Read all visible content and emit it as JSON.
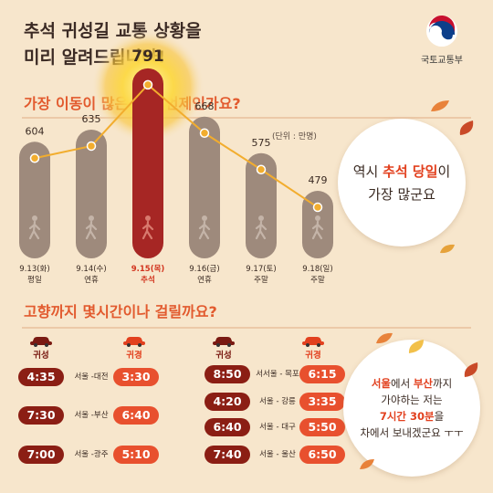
{
  "header": {
    "title_line1": "추석 귀성길 교통 상황을",
    "title_line2": "미리 알려드립니다!",
    "ministry": "국토교통부"
  },
  "section1": {
    "title": "가장 이동이 많은 날은 언제인가요?",
    "unit": "(단위 : 만명)"
  },
  "chart_data": {
    "type": "bar",
    "categories": [
      "9.13(화)",
      "9.14(수)",
      "9.15(목)",
      "9.16(금)",
      "9.17(토)",
      "9.18(일)"
    ],
    "sublabels": [
      "평일",
      "연휴",
      "추석",
      "연휴",
      "주말",
      "주말"
    ],
    "values": [
      604,
      635,
      791,
      668,
      575,
      479
    ],
    "highlight_index": 2,
    "colors": {
      "bar": "#9e8a7c",
      "highlight": "#a62624",
      "line": "#f2ad2e",
      "glow": "#fcd94a"
    }
  },
  "bubble1": {
    "prefix": "역시 ",
    "highlight": "추석 당일",
    "suffix": "이",
    "line2": "가장 많군요"
  },
  "section2": {
    "title": "고향까지 몇시간이나 걸릴까요?",
    "legend_home": "귀성",
    "legend_return": "귀경"
  },
  "routes_left": [
    {
      "home": "4:35",
      "route": "서울 -대전",
      "ret": "3:30"
    },
    {
      "home": "7:30",
      "route": "서울 -부산",
      "ret": "6:40"
    },
    {
      "home": "7:00",
      "route": "서울 -광주",
      "ret": "5:10"
    }
  ],
  "routes_right": [
    {
      "home": "8:50",
      "route": "서서울 - 목포",
      "ret": "6:15"
    },
    {
      "home": "4:20",
      "route": "서울 - 강릉",
      "ret": "3:35"
    },
    {
      "home": "6:40",
      "route": "서울 - 대구",
      "ret": "5:50"
    },
    {
      "home": "7:40",
      "route": "서울 - 울산",
      "ret": "6:50"
    }
  ],
  "bubble2": {
    "l1_a": "서울",
    "l1_b": "에서 ",
    "l1_c": "부산",
    "l1_d": "까지",
    "l2": "가야하는 저는",
    "l3_a": "7시간 30분",
    "l3_b": "을",
    "l4": "차에서 보내겠군요 ㅜㅜ"
  },
  "colors": {
    "accent": "#e25a2e",
    "background": "#f7e6cc"
  }
}
